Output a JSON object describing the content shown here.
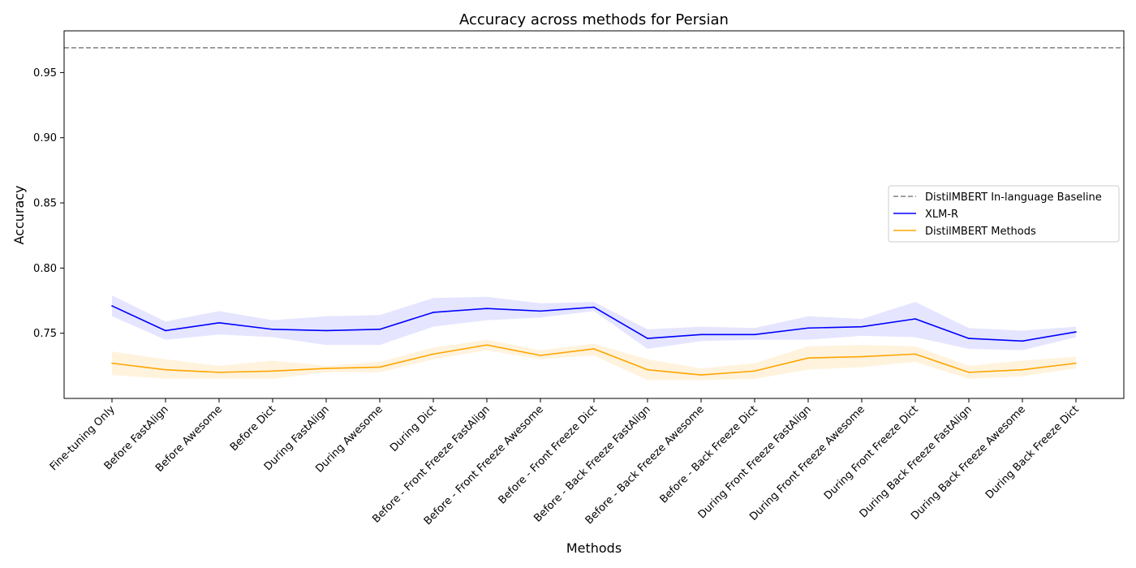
{
  "chart_data": {
    "type": "line",
    "title": "Accuracy across methods for Persian",
    "xlabel": "Methods",
    "ylabel": "Accuracy",
    "ylim": [
      0.7,
      0.982
    ],
    "yticks": [
      "0.75",
      "0.80",
      "0.85",
      "0.90",
      "0.95"
    ],
    "ytick_values": [
      0.75,
      0.8,
      0.85,
      0.9,
      0.95
    ],
    "grid": false,
    "legend_position": "center-right",
    "categories": [
      "Fine-tuning Only",
      "Before FastAlign",
      "Before Awesome",
      "Before Dict",
      "During FastAlign",
      "During Awesome",
      "During Dict",
      "Before - Front Freeze FastAlign",
      "Before - Front Freeze Awesome",
      "Before - Front Freeze Dict",
      "Before - Back Freeze FastAlign",
      "Before - Back Freeze Awesome",
      "Before - Back Freeze Dict",
      "During Front Freeze FastAlign",
      "During Front Freeze Awesome",
      "During Front Freeze Dict",
      "During Back Freeze FastAlign",
      "During Back Freeze Awesome",
      "During Back Freeze Dict"
    ],
    "baseline": {
      "name": "DistilMBERT In-language Baseline",
      "value": 0.969,
      "color": "#808080"
    },
    "series": [
      {
        "name": "XLM-R",
        "color": "#0000ff",
        "band_color": "#0000ff",
        "values": [
          0.771,
          0.752,
          0.758,
          0.753,
          0.752,
          0.753,
          0.766,
          0.769,
          0.767,
          0.77,
          0.746,
          0.749,
          0.749,
          0.754,
          0.755,
          0.761,
          0.746,
          0.744,
          0.751
        ],
        "lower": [
          0.763,
          0.745,
          0.749,
          0.747,
          0.741,
          0.741,
          0.755,
          0.76,
          0.762,
          0.767,
          0.738,
          0.744,
          0.745,
          0.745,
          0.748,
          0.747,
          0.738,
          0.737,
          0.747
        ],
        "upper": [
          0.779,
          0.759,
          0.767,
          0.76,
          0.763,
          0.764,
          0.777,
          0.778,
          0.773,
          0.774,
          0.753,
          0.755,
          0.754,
          0.763,
          0.761,
          0.774,
          0.754,
          0.752,
          0.755
        ]
      },
      {
        "name": "DistilMBERT Methods",
        "color": "#ffa500",
        "band_color": "#ffa500",
        "values": [
          0.727,
          0.722,
          0.72,
          0.721,
          0.723,
          0.724,
          0.734,
          0.741,
          0.733,
          0.738,
          0.722,
          0.718,
          0.721,
          0.731,
          0.732,
          0.734,
          0.72,
          0.722,
          0.727
        ],
        "lower": [
          0.718,
          0.715,
          0.715,
          0.715,
          0.72,
          0.72,
          0.73,
          0.737,
          0.73,
          0.733,
          0.714,
          0.714,
          0.715,
          0.722,
          0.724,
          0.728,
          0.715,
          0.717,
          0.723
        ],
        "upper": [
          0.736,
          0.73,
          0.725,
          0.729,
          0.725,
          0.728,
          0.739,
          0.745,
          0.737,
          0.742,
          0.73,
          0.723,
          0.727,
          0.74,
          0.741,
          0.74,
          0.725,
          0.729,
          0.732
        ]
      }
    ]
  }
}
